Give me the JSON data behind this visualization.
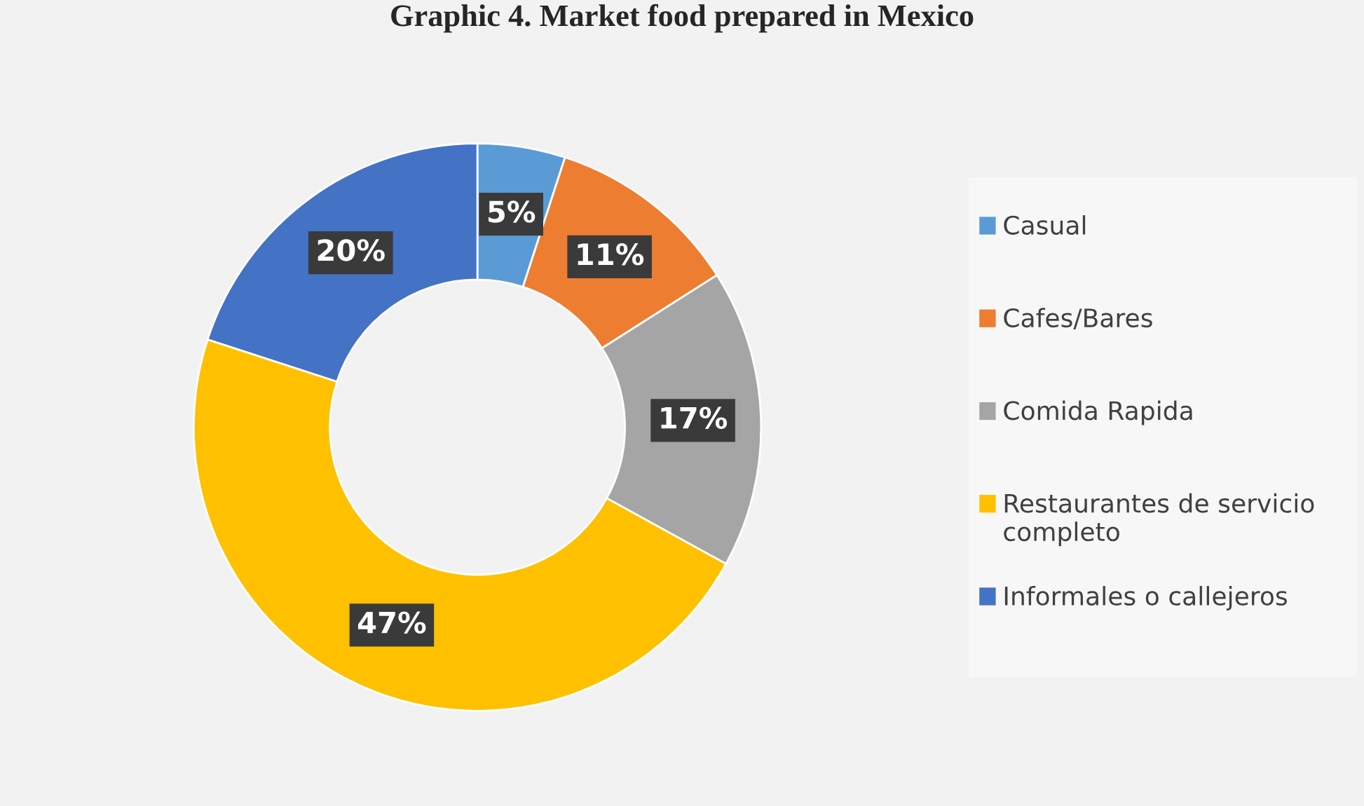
{
  "chart_data": {
    "type": "donut",
    "title": "Graphic 4. Market food prepared in Mexico",
    "categories": [
      "Casual",
      "Cafes/Bares",
      "Comida Rapida",
      "Restaurantes de servicio completo",
      "Informales o callejeros"
    ],
    "values": [
      5,
      11,
      17,
      47,
      20
    ],
    "colors": [
      "#5b9bd5",
      "#ed7d31",
      "#a5a5a5",
      "#ffc000",
      "#4472c4"
    ],
    "value_labels": [
      "5%",
      "11%",
      "17%",
      "47%",
      "20%"
    ],
    "legend": "right"
  }
}
